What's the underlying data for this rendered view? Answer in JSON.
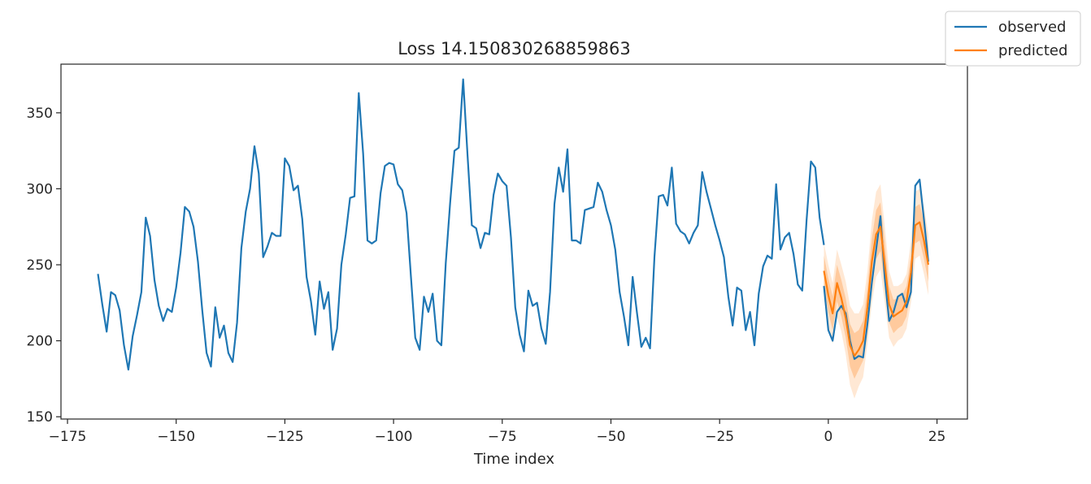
{
  "chart_data": {
    "type": "line",
    "title": "Loss 14.150830268859863",
    "xlabel": "Time index",
    "ylabel": "",
    "xlim": [
      -176.5,
      32
    ],
    "ylim": [
      148.5,
      382
    ],
    "xticks": [
      -175,
      -150,
      -125,
      -100,
      -75,
      -50,
      -25,
      0,
      25
    ],
    "xtick_labels": [
      "−175",
      "−150",
      "−125",
      "−100",
      "−75",
      "−50",
      "−25",
      "0",
      "25"
    ],
    "yticks": [
      150,
      200,
      250,
      300,
      350
    ],
    "ytick_labels": [
      "150",
      "200",
      "250",
      "300",
      "350"
    ],
    "grid": false,
    "legend": {
      "placement": "top-right",
      "entries": [
        "observed",
        "predicted"
      ]
    },
    "colors": {
      "observed": "#1f77b4",
      "predicted": "#ff7f0e"
    },
    "series": [
      {
        "name": "observed",
        "x_start": -168,
        "values": [
          244,
          224,
          206,
          232,
          230,
          220,
          197,
          181,
          203,
          217,
          232,
          281,
          269,
          240,
          223,
          213,
          221,
          219,
          235,
          258,
          288,
          285,
          275,
          252,
          220,
          192,
          183,
          222,
          202,
          210,
          192,
          186,
          212,
          261,
          285,
          300,
          328,
          310,
          255,
          262,
          271,
          269,
          269,
          320,
          315,
          299,
          302,
          280,
          242,
          226,
          204,
          239,
          221,
          232,
          194,
          208,
          250,
          270,
          294,
          295,
          363,
          323,
          266,
          264,
          266,
          297,
          315,
          317,
          316,
          303,
          299,
          284,
          242,
          202,
          194,
          229,
          219,
          231,
          200,
          197,
          251,
          290,
          325,
          327,
          372,
          323,
          276,
          274,
          261,
          271,
          270,
          296,
          310,
          305,
          302,
          268,
          222,
          204,
          193,
          233,
          223,
          225,
          208,
          198,
          232,
          290,
          314,
          298,
          326,
          266,
          266,
          264,
          286,
          287,
          288,
          304,
          298,
          286,
          276,
          260,
          232,
          216,
          197,
          242,
          218,
          196,
          202,
          195,
          255,
          295,
          296,
          289,
          314,
          277,
          272,
          270,
          264,
          271,
          276,
          311,
          298,
          287,
          276,
          266,
          255,
          229,
          210,
          235,
          233,
          207,
          219,
          197,
          231,
          249,
          256,
          254,
          303,
          260,
          268,
          271,
          257,
          237,
          233,
          279,
          318,
          314,
          281,
          263
        ],
        "forecast_x_start": -1,
        "forecast_values": [
          236,
          207,
          200,
          219,
          223,
          218,
          200,
          188,
          190,
          189,
          211,
          238,
          260,
          282,
          241,
          213,
          219,
          229,
          231,
          222,
          232,
          302,
          306,
          280,
          252
        ]
      },
      {
        "name": "predicted",
        "x_start": -1,
        "values": [
          246,
          230,
          218,
          238,
          228,
          215,
          197,
          190,
          194,
          200,
          222,
          252,
          270,
          275,
          250,
          224,
          216,
          218,
          220,
          226,
          245,
          276,
          278,
          266,
          250
        ],
        "band_inner": [
          10,
          11,
          11,
          12,
          12,
          13,
          14,
          15,
          13,
          13,
          13,
          15,
          16,
          16,
          14,
          12,
          11,
          10,
          10,
          10,
          11,
          12,
          12,
          12,
          11
        ],
        "band_outer": [
          18,
          20,
          20,
          22,
          22,
          24,
          26,
          28,
          24,
          24,
          24,
          27,
          28,
          28,
          25,
          22,
          20,
          18,
          18,
          18,
          20,
          22,
          22,
          22,
          20
        ]
      }
    ]
  }
}
